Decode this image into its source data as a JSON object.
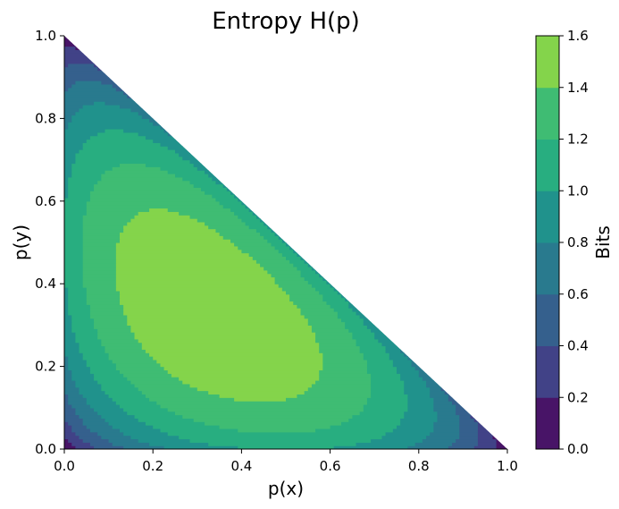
{
  "chart_data": {
    "type": "heatmap",
    "subtype": "filled-contour",
    "title": "Entropy H(p)",
    "xlabel": "p(x)",
    "ylabel": "p(y)",
    "xlim": [
      0.0,
      1.0
    ],
    "ylim": [
      0.0,
      1.0
    ],
    "xticks": [
      "0.0",
      "0.2",
      "0.4",
      "0.6",
      "0.8",
      "1.0"
    ],
    "yticks": [
      "0.0",
      "0.2",
      "0.4",
      "0.6",
      "0.8",
      "1.0"
    ],
    "domain": "simplex: p(x) + p(y) <= 1",
    "function": "H = -p(x) log2 p(x) - p(y) log2 p(y) - (1 - p(x) - p(y)) log2 (1 - p(x) - p(y))",
    "grid": false,
    "colorbar": {
      "label": "Bits",
      "levels": [
        0.0,
        0.2,
        0.4,
        0.6,
        0.8,
        1.0,
        1.2,
        1.4,
        1.6
      ],
      "ticks": [
        "0.0",
        "0.2",
        "0.4",
        "0.6",
        "0.8",
        "1.0",
        "1.2",
        "1.4",
        "1.6"
      ],
      "colors": [
        "#481467",
        "#414287",
        "#35608d",
        "#297a8e",
        "#20928c",
        "#28ae80",
        "#3fbc73",
        "#84d44b",
        "#dae319"
      ]
    }
  }
}
